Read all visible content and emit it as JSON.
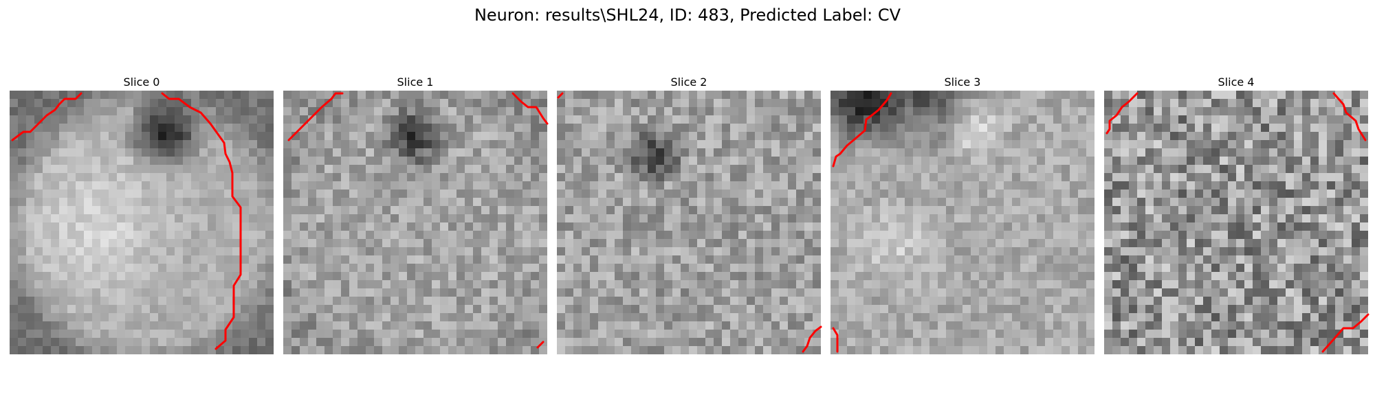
{
  "figure": {
    "title": "Neuron: results\\SHL24, ID: 483, Predicted Label: CV"
  },
  "slices": [
    {
      "label": "Slice 0"
    },
    {
      "label": "Slice 1"
    },
    {
      "label": "Slice 2"
    },
    {
      "label": "Slice 3"
    },
    {
      "label": "Slice 4"
    }
  ],
  "colors": {
    "contour": "#ff0000",
    "background": "#ffffff"
  }
}
